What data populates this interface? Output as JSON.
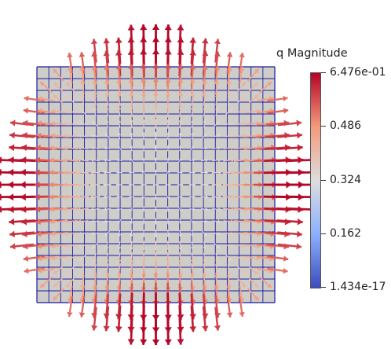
{
  "legend": {
    "title": "q Magnitude",
    "max_label": "6.476e-01",
    "ticks": [
      "0.486",
      "0.324",
      "0.162"
    ],
    "min_label": "1.434e-17"
  },
  "colormap": {
    "name": "Cool to Warm",
    "stops": [
      "#3b4cc0",
      "#8db0fe",
      "#dddddd",
      "#f49a7b",
      "#b40426"
    ]
  },
  "colors": {
    "mesh_fill": "#cfcdc8",
    "mesh_lines": "#1a1aa6",
    "background": "#ffffff"
  },
  "scene": {
    "mesh_cells": 20,
    "glyph_grid": 25
  }
}
